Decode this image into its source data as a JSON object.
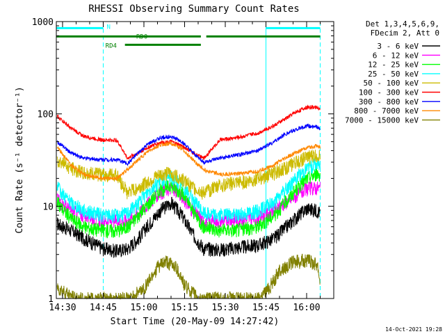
{
  "chart_data": {
    "type": "line",
    "title": "RHESSI Observing Summary Count Rates",
    "xlabel": "Start Time (20-May-09 14:27:42)",
    "ylabel": "Count Rate (s⁻¹ detector⁻¹)",
    "yscale": "log",
    "xlim": [
      "14:27:42",
      "16:10:00"
    ],
    "ylim": [
      1,
      1000
    ],
    "x_ticks": [
      "14:30",
      "14:45",
      "15:00",
      "15:15",
      "15:30",
      "15:45",
      "16:00"
    ],
    "y_ticks": [
      "1",
      "10",
      "100",
      "1000"
    ],
    "legend_header": [
      "Det 1,3,4,5,6,9,",
      "FDecim 2, Att 0"
    ],
    "legend_position": "right",
    "timestamp": "14-Oct-2021 19:28",
    "flags": [
      {
        "label": "N",
        "color": "#00ffff",
        "segments": [
          [
            "14:27:42",
            "14:45:00"
          ],
          [
            "15:45:00",
            "16:05:00"
          ]
        ],
        "level": 850
      },
      {
        "label": "RD0",
        "color": "#008000",
        "segments": [
          [
            "14:27:42",
            "15:21:00"
          ],
          [
            "15:23:00",
            "16:05:00"
          ]
        ],
        "level": 690
      },
      {
        "label": "RD4",
        "color": "#008000",
        "segments": [
          [
            "14:53:00",
            "15:21:00"
          ]
        ],
        "level": 560
      }
    ],
    "vertical_markers": [
      {
        "time": "14:45:00",
        "style": "dashed",
        "color": "#00ffff"
      },
      {
        "time": "15:45:00",
        "style": "solid",
        "color": "#00ffff"
      },
      {
        "time": "16:05:00",
        "style": "dashed",
        "color": "#00ffff"
      }
    ],
    "series": [
      {
        "name": "3 - 6 keV",
        "color": "#000000",
        "x": [
          "14:28",
          "14:33",
          "14:38",
          "14:45",
          "14:50",
          "14:54",
          "14:58",
          "15:02",
          "15:06",
          "15:10",
          "15:14",
          "15:18",
          "15:22",
          "15:28",
          "15:35",
          "15:42",
          "15:48",
          "15:52",
          "15:56",
          "16:00",
          "16:04",
          "16:05"
        ],
        "y": [
          6.5,
          5.5,
          4.5,
          3.5,
          3.3,
          3.5,
          4.5,
          6.5,
          9,
          11,
          8,
          5,
          3.5,
          3.4,
          3.6,
          3.8,
          4.5,
          5.8,
          7.5,
          9.5,
          9,
          8.5
        ]
      },
      {
        "name": "6 - 12 keV",
        "color": "#ff00ff",
        "x": [
          "14:28",
          "14:33",
          "14:38",
          "14:45",
          "14:50",
          "14:54",
          "14:58",
          "15:02",
          "15:06",
          "15:10",
          "15:14",
          "15:18",
          "15:22",
          "15:28",
          "15:35",
          "15:42",
          "15:48",
          "15:52",
          "15:56",
          "16:00",
          "16:04",
          "16:05"
        ],
        "y": [
          12,
          9,
          8,
          7,
          7,
          7,
          8.5,
          11,
          14,
          16,
          13,
          9,
          7,
          7,
          7.2,
          7.5,
          9,
          11,
          13,
          15.5,
          16,
          15.5
        ]
      },
      {
        "name": "12 - 25 keV",
        "color": "#00ff00",
        "x": [
          "14:28",
          "14:33",
          "14:38",
          "14:45",
          "14:50",
          "14:54",
          "14:58",
          "15:02",
          "15:06",
          "15:10",
          "15:14",
          "15:18",
          "15:22",
          "15:28",
          "15:35",
          "15:42",
          "15:48",
          "15:52",
          "15:56",
          "16:00",
          "16:04",
          "16:05"
        ],
        "y": [
          11,
          7.5,
          6,
          5.5,
          5.5,
          6,
          8,
          11,
          15,
          17,
          14,
          9,
          6,
          5.5,
          5.6,
          6,
          8,
          11,
          15,
          20,
          23,
          22
        ]
      },
      {
        "name": "25 - 50 keV",
        "color": "#00ffff",
        "x": [
          "14:28",
          "14:33",
          "14:38",
          "14:45",
          "14:50",
          "14:54",
          "14:58",
          "15:02",
          "15:06",
          "15:10",
          "15:14",
          "15:18",
          "15:22",
          "15:28",
          "15:35",
          "15:42",
          "15:48",
          "15:52",
          "15:56",
          "16:00",
          "16:04",
          "16:05"
        ],
        "y": [
          16,
          11,
          9,
          8,
          8,
          8.5,
          11,
          15,
          19,
          21,
          17,
          12,
          8.5,
          8,
          8.2,
          9,
          11,
          15,
          20,
          26,
          29,
          28
        ]
      },
      {
        "name": "50 - 100 keV",
        "color": "#ccbb00",
        "x": [
          "14:28",
          "14:33",
          "14:38",
          "14:45",
          "14:50",
          "14:54",
          "14:58",
          "15:02",
          "15:06",
          "15:10",
          "15:14",
          "15:18",
          "15:22",
          "15:28",
          "15:35",
          "15:42",
          "15:48",
          "15:52",
          "15:56",
          "16:00",
          "16:04",
          "16:05"
        ],
        "y": [
          33,
          26,
          23,
          22,
          22,
          14,
          16,
          19,
          22,
          23,
          20,
          16,
          14,
          17,
          18,
          20,
          23,
          26,
          30,
          34,
          36,
          35
        ]
      },
      {
        "name": "100 - 300 keV",
        "color": "#ff0000",
        "x": [
          "14:28",
          "14:33",
          "14:38",
          "14:45",
          "14:50",
          "14:54",
          "14:58",
          "15:02",
          "15:06",
          "15:10",
          "15:14",
          "15:18",
          "15:22",
          "15:28",
          "15:35",
          "15:42",
          "15:48",
          "15:52",
          "15:56",
          "16:00",
          "16:04",
          "16:05"
        ],
        "y": [
          95,
          70,
          57,
          52,
          52,
          33,
          38,
          44,
          49,
          50,
          45,
          38,
          33,
          52,
          56,
          62,
          75,
          88,
          105,
          118,
          118,
          110
        ]
      },
      {
        "name": "300 - 800 keV",
        "color": "#0000ff",
        "x": [
          "14:28",
          "14:33",
          "14:38",
          "14:45",
          "14:50",
          "14:54",
          "14:58",
          "15:02",
          "15:06",
          "15:10",
          "15:14",
          "15:18",
          "15:22",
          "15:28",
          "15:35",
          "15:42",
          "15:48",
          "15:52",
          "15:56",
          "16:00",
          "16:04",
          "16:05"
        ],
        "y": [
          50,
          38,
          33,
          32,
          32,
          29,
          38,
          48,
          55,
          57,
          50,
          38,
          30,
          33,
          36,
          40,
          50,
          60,
          68,
          74,
          72,
          68
        ]
      },
      {
        "name": "800 - 7000 keV",
        "color": "#ff8800",
        "x": [
          "14:28",
          "14:33",
          "14:38",
          "14:45",
          "14:50",
          "14:54",
          "14:58",
          "15:02",
          "15:06",
          "15:10",
          "15:14",
          "15:18",
          "15:22",
          "15:28",
          "15:35",
          "15:42",
          "15:48",
          "15:52",
          "15:56",
          "16:00",
          "16:04",
          "16:05"
        ],
        "y": [
          44,
          28,
          22,
          20,
          20,
          25,
          32,
          40,
          46,
          48,
          42,
          32,
          25,
          22,
          22.5,
          24,
          28,
          33,
          38,
          43,
          45,
          43
        ]
      },
      {
        "name": "7000 - 15000 keV",
        "color": "#808000",
        "x": [
          "14:28",
          "14:30",
          "14:35",
          "14:40",
          "14:45",
          "14:55",
          "15:00",
          "15:05",
          "15:08",
          "15:12",
          "15:15",
          "15:20",
          "15:30",
          "15:42",
          "15:46",
          "15:50",
          "15:55",
          "16:00",
          "16:04",
          "16:05"
        ],
        "y": [
          1.3,
          1.2,
          1,
          1,
          1,
          1,
          1.3,
          2.2,
          2.5,
          2.2,
          1.4,
          1,
          1,
          1,
          1.3,
          2.0,
          2.5,
          2.6,
          2.4,
          1.5
        ]
      }
    ]
  }
}
